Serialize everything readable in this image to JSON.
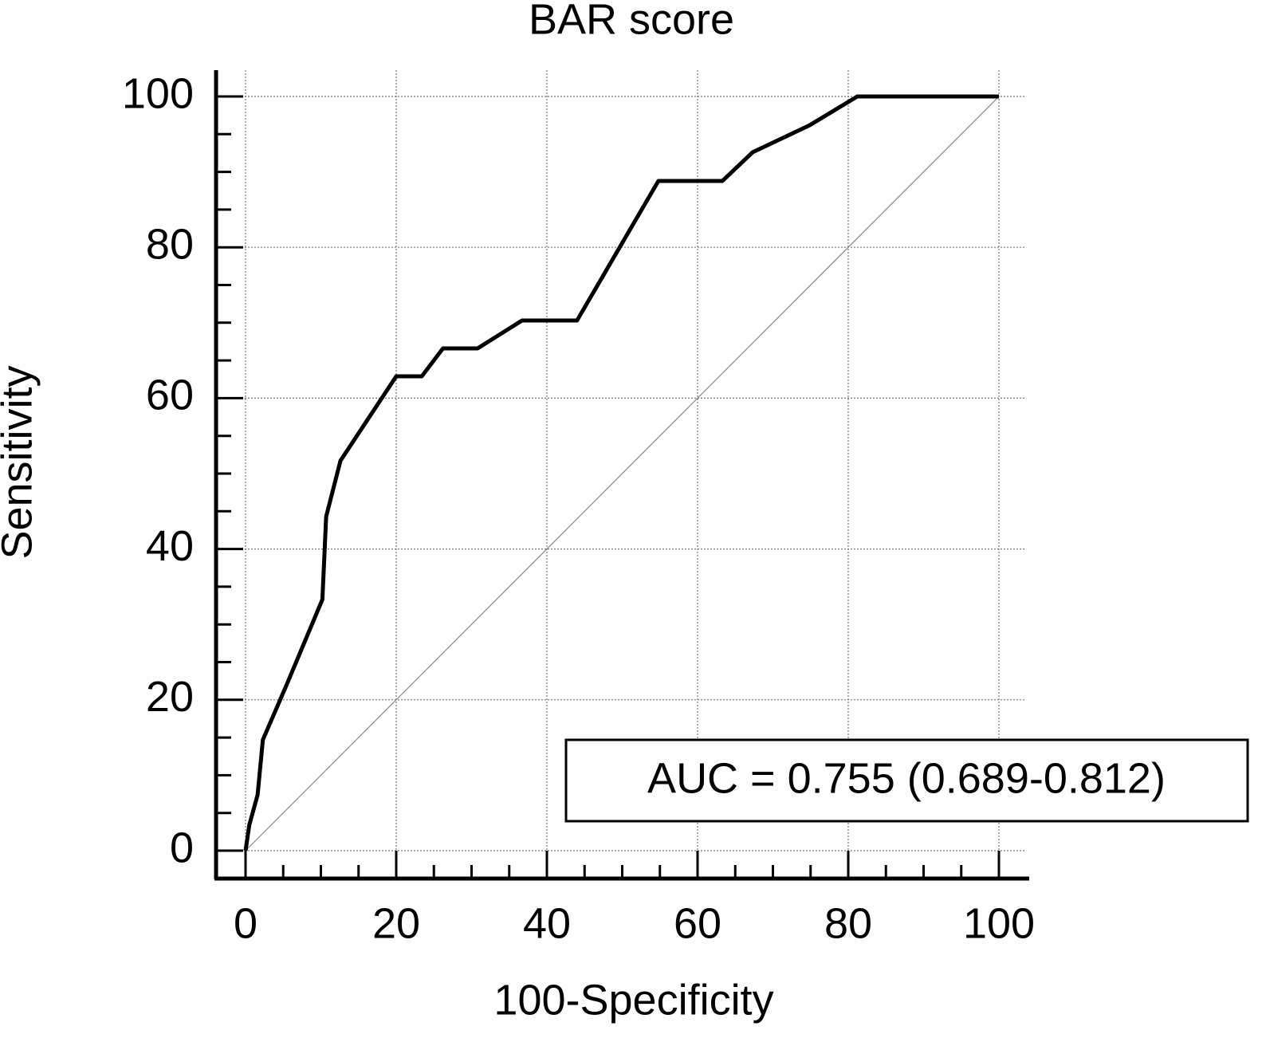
{
  "chart_data": {
    "type": "line",
    "title": "BAR score",
    "x_label": "100-Specificity",
    "y_label": "Sensitivity",
    "x": [
      0,
      0.5,
      1.6,
      2.3,
      5.5,
      10.2,
      10.7,
      12.6,
      20,
      23.4,
      26.2,
      30.8,
      36.7,
      44,
      54.8,
      63.3,
      67.3,
      74.9,
      81.2,
      100
    ],
    "values": [
      0,
      3.4,
      7.4,
      14.7,
      22.1,
      33.3,
      44.3,
      51.7,
      62.9,
      62.9,
      66.6,
      66.6,
      70.3,
      70.3,
      88.8,
      88.8,
      92.6,
      96.2,
      100,
      100
    ],
    "color": "#000000",
    "xlim": [
      0,
      100
    ],
    "ylim": [
      0,
      100
    ],
    "xticks": [
      0,
      20,
      40,
      60,
      80,
      100
    ],
    "yticks": [
      0,
      20,
      40,
      60,
      80,
      100
    ],
    "grid": true,
    "diagonal": true,
    "annotation": "AUC = 0.755 (0.689-0.812)"
  }
}
